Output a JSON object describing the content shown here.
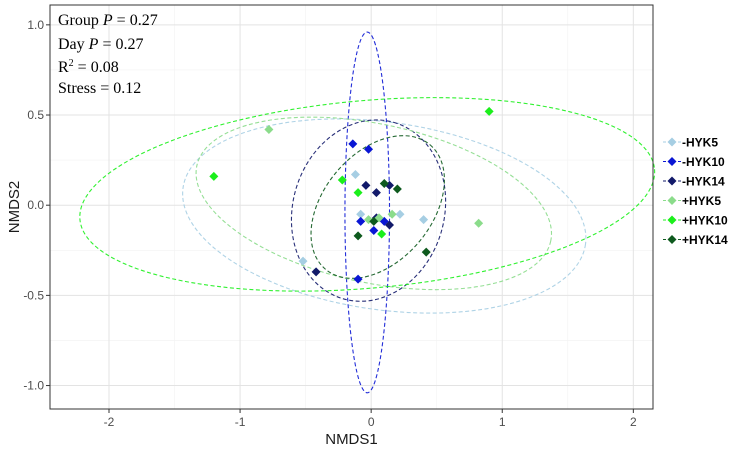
{
  "chart_data": {
    "type": "scatter",
    "title": "",
    "xlabel": "NMDS1",
    "ylabel": "NMDS2",
    "xlim": [
      -2.45,
      2.15
    ],
    "ylim": [
      -1.13,
      1.11
    ],
    "xticks": [
      -2,
      -1,
      0,
      1,
      2
    ],
    "yticks": [
      -1.0,
      -0.5,
      0.0,
      0.5,
      1.0
    ],
    "xtick_labels": [
      "-2",
      "-1",
      "0",
      "1",
      "2"
    ],
    "ytick_labels": [
      "-1.0",
      "-0.5",
      "0.0",
      "0.5",
      "1.0"
    ],
    "grid": true,
    "legend_position": "right",
    "stats": {
      "group_prefix": "Group ",
      "group_p_symbol": "P",
      "group_p_value": " = 0.27",
      "day_prefix": "Day ",
      "day_p_symbol": "P",
      "day_p_value": " = 0.27",
      "r2_base": "R",
      "r2_exp": "2",
      "r2_value": " = 0.08",
      "stress": "Stress = 0.12"
    },
    "series": [
      {
        "name": "-HYK5",
        "color": "#a6cee3",
        "points": [
          [
            -0.52,
            -0.31
          ],
          [
            -0.12,
            0.17
          ],
          [
            -0.08,
            -0.05
          ],
          [
            0.22,
            -0.05
          ],
          [
            0.4,
            -0.08
          ]
        ],
        "ellipse": {
          "cx": 0.1,
          "cy": -0.06,
          "rx": 1.55,
          "ry": 0.52,
          "angle_deg": -8
        }
      },
      {
        "name": "-HYK10",
        "color": "#0a16d4",
        "points": [
          [
            -0.14,
            0.34
          ],
          [
            -0.02,
            0.31
          ],
          [
            -0.08,
            -0.09
          ],
          [
            0.02,
            -0.14
          ],
          [
            0.1,
            -0.09
          ],
          [
            -0.1,
            -0.41
          ]
        ],
        "ellipse": {
          "cx": -0.03,
          "cy": -0.04,
          "rx": 0.17,
          "ry": 1.0,
          "angle_deg": 0
        }
      },
      {
        "name": "-HYK14",
        "color": "#121a6a",
        "points": [
          [
            -0.42,
            -0.37
          ],
          [
            -0.04,
            0.11
          ],
          [
            0.04,
            0.07
          ],
          [
            0.14,
            0.11
          ],
          [
            0.14,
            -0.11
          ],
          [
            0.04,
            -0.07
          ]
        ],
        "ellipse": {
          "cx": -0.02,
          "cy": -0.03,
          "rx": 0.7,
          "ry": 0.42,
          "angle_deg": 74
        }
      },
      {
        "name": "+HYK5",
        "color": "#8bdc8b",
        "points": [
          [
            -0.78,
            0.42
          ],
          [
            0.16,
            -0.05
          ],
          [
            0.06,
            -0.07
          ],
          [
            -0.02,
            -0.08
          ],
          [
            0.82,
            -0.1
          ]
        ],
        "ellipse": {
          "cx": 0.02,
          "cy": 0.01,
          "rx": 1.38,
          "ry": 0.44,
          "angle_deg": -12
        }
      },
      {
        "name": "+HYK10",
        "color": "#1bef1b",
        "points": [
          [
            -1.2,
            0.16
          ],
          [
            -0.22,
            0.14
          ],
          [
            -0.1,
            0.07
          ],
          [
            0.9,
            0.52
          ],
          [
            0.08,
            -0.16
          ]
        ],
        "ellipse": {
          "cx": -0.03,
          "cy": 0.06,
          "rx": 2.2,
          "ry": 0.52,
          "angle_deg": 5
        }
      },
      {
        "name": "+HYK14",
        "color": "#0e5a1e",
        "points": [
          [
            0.1,
            0.12
          ],
          [
            0.2,
            0.09
          ],
          [
            -0.1,
            -0.17
          ],
          [
            0.02,
            -0.09
          ],
          [
            0.42,
            -0.26
          ]
        ],
        "ellipse": {
          "cx": 0.05,
          "cy": -0.01,
          "rx": 0.62,
          "ry": 0.3,
          "angle_deg": 50
        }
      }
    ]
  }
}
